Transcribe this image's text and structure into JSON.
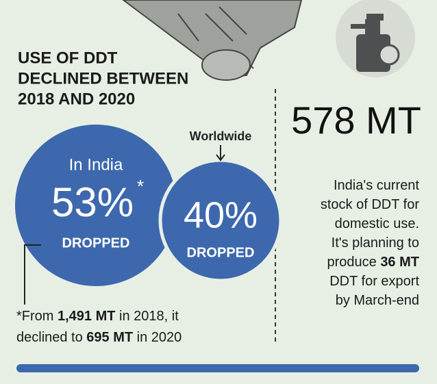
{
  "header": {
    "title_lines": [
      "USE OF DDT",
      "DECLINED BETWEEN",
      "2018 AND 2020"
    ]
  },
  "india": {
    "label": "In India",
    "value": "53%",
    "marker": "*",
    "caption": "DROPPED"
  },
  "worldwide": {
    "label": "Worldwide",
    "value": "40%",
    "caption": "DROPPED"
  },
  "footnote": {
    "lines": [
      [
        {
          "text": "*From "
        },
        {
          "text": "1,491 MT",
          "bold": true
        },
        {
          "text": " in 2018, it"
        }
      ],
      [
        {
          "text": "declined to "
        },
        {
          "text": "695 MT",
          "bold": true
        },
        {
          "text": " in 2020"
        }
      ]
    ]
  },
  "stock": {
    "value": "578 MT",
    "description_lines": [
      [
        {
          "text": "India's current"
        }
      ],
      [
        {
          "text": "stock of DDT for"
        }
      ],
      [
        {
          "text": "domestic use."
        }
      ],
      [
        {
          "text": "It's planning to"
        }
      ],
      [
        {
          "text": "produce "
        },
        {
          "text": "36 MT",
          "bold": true
        }
      ],
      [
        {
          "text": "DDT for export"
        }
      ],
      [
        {
          "text": "by March-end"
        }
      ]
    ]
  }
}
